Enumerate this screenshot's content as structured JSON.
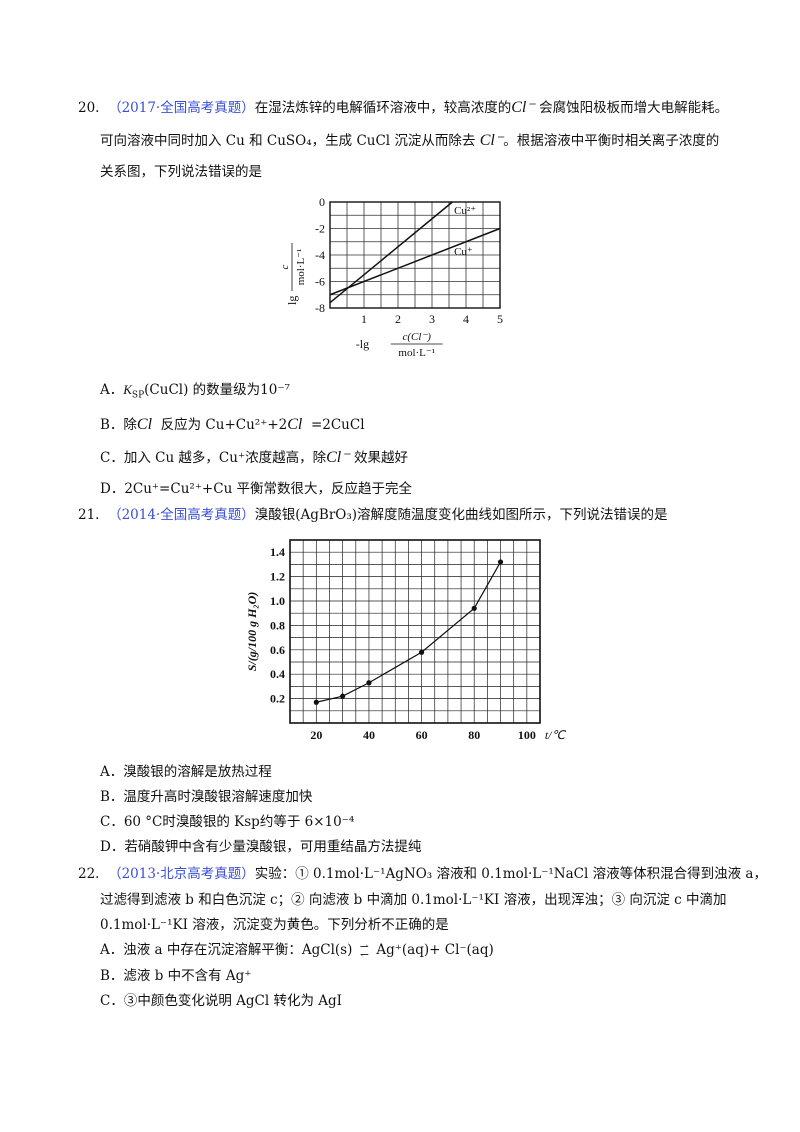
{
  "q20": {
    "num": "20.",
    "source": "（2017·全国高考真题）",
    "text1a": "在湿法炼锌的电解循环溶液中，较高浓度的",
    "cl_ion": "Cl⁻",
    "text1b": "会腐蚀阳极板而增大电解能耗。",
    "text2a": "可向溶液中同时加入 Cu 和 CuSO₄，生成 CuCl 沉淀从而除去",
    "text2b": "。根据溶液中平衡时相关离子浓度的",
    "text3": "关系图，下列说法错误的是",
    "optA_pre": "A．",
    "optA_ksp": "K",
    "optA_sub": "SP",
    "optA_rest": "(CuCl) 的数量级为",
    "optA_val": "10⁻⁷",
    "optB_pre": "B．除",
    "optB_cl": "Cl",
    "optB_mid": "反应为 Cu+Cu²⁺+2",
    "optB_end": "=2CuCl",
    "optC_pre": "C．加入 Cu 越多，Cu⁺浓度越高，除",
    "optC_end": "效果越好",
    "optD": "D．2Cu⁺=Cu²⁺+Cu 平衡常数很大，反应趋于完全"
  },
  "q21": {
    "num": "21.",
    "source": "（2014·全国高考真题）",
    "text1": "溴酸银(AgBrO₃)溶解度随温度变化曲线如图所示，下列说法错误的是",
    "optA": "A．溴酸银的溶解是放热过程",
    "optB": "B．温度升高时溴酸银溶解速度加快",
    "optC": "C．60 °C时溴酸银的 Ksp约等于 6×10⁻⁴",
    "optD": "D．若硝酸钾中含有少量溴酸银，可用重结晶方法提纯"
  },
  "q22": {
    "num": "22.",
    "source": "（2013·北京高考真题）",
    "text1": "实验：① 0.1mol·L⁻¹AgNO₃ 溶液和 0.1mol·L⁻¹NaCl 溶液等体积混合得到浊液 a，",
    "text2": "过滤得到滤液 b 和白色沉淀 c；② 向滤液 b 中滴加 0.1mol·L⁻¹KI 溶液，出现浑浊；③ 向沉淀 c 中滴加",
    "text3": "0.1mol·L⁻¹KI 溶液，沉淀变为黄色。下列分析不正确的是",
    "optA_pre": "A．浊液 a 中存在沉淀溶解平衡：AgCl(s)",
    "optA_post": "Ag⁺(aq)+ Cl⁻(aq)",
    "optB": "B．滤液 b 中不含有 Ag⁺",
    "optC": "C．③中颜色变化说明 AgCl 转化为 AgI"
  },
  "chart_data": [
    {
      "type": "line",
      "xlabel_prefix": "-lg",
      "xlabel_num": "c(Cl⁻)",
      "xlabel_den": "mol·L⁻¹",
      "ylabel_prefix": "lg",
      "ylabel_num": "c",
      "ylabel_den": "mol·L⁻¹",
      "xlim": [
        0,
        5
      ],
      "ylim": [
        -8,
        0
      ],
      "x_ticks": [
        "1",
        "2",
        "3",
        "4",
        "5"
      ],
      "y_ticks": [
        "0",
        "-2",
        "-4",
        "-6",
        "-8"
      ],
      "grid": true,
      "series": [
        {
          "name": "Cu²⁺",
          "x": [
            0,
            3.6
          ],
          "y": [
            -7.6,
            0
          ]
        },
        {
          "name": "Cu⁺",
          "x": [
            0,
            5
          ],
          "y": [
            -7.0,
            -2.0
          ]
        }
      ]
    },
    {
      "type": "line",
      "xlabel": "t/℃",
      "ylabel": "S/(g/100 g H₂O)",
      "xlim": [
        10,
        105
      ],
      "ylim": [
        0,
        1.5
      ],
      "x_ticks": [
        "20",
        "40",
        "60",
        "80",
        "100"
      ],
      "y_ticks": [
        "0.2",
        "0.4",
        "0.6",
        "0.8",
        "1.0",
        "1.2",
        "1.4"
      ],
      "grid": true,
      "series": [
        {
          "x": [
            20,
            30,
            40,
            60,
            80,
            90
          ],
          "y": [
            0.17,
            0.22,
            0.33,
            0.58,
            0.94,
            1.32
          ]
        }
      ]
    }
  ]
}
